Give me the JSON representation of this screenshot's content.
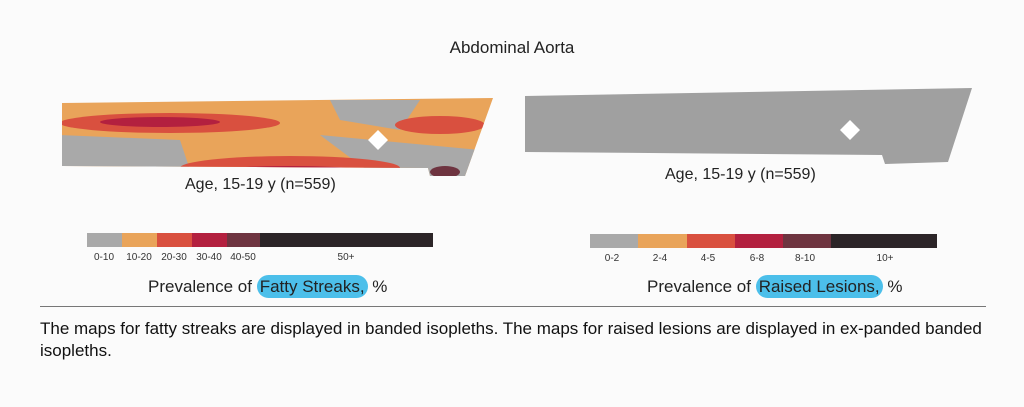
{
  "title": "Abdominal Aorta",
  "panels": [
    {
      "age_label": "Age, 15-19 y (n=559)",
      "legend": {
        "labels": [
          "0-10",
          "10-20",
          "20-30",
          "30-40",
          "40-50",
          "50+"
        ],
        "colors": [
          "#a9a9a9",
          "#e9a45a",
          "#d9503f",
          "#b3203f",
          "#6e3440",
          "#2c2528"
        ]
      },
      "caption_prefix": "Prevalence of ",
      "caption_highlight": "Fatty Streaks,",
      "caption_suffix": " %"
    },
    {
      "age_label": "Age, 15-19 y (n=559)",
      "legend": {
        "labels": [
          "0-2",
          "2-4",
          "4-5",
          "6-8",
          "8-10",
          "10+"
        ],
        "colors": [
          "#a9a9a9",
          "#e9a45a",
          "#d9503f",
          "#b3203f",
          "#6e3440",
          "#2c2528"
        ]
      },
      "caption_prefix": "Prevalence of ",
      "caption_highlight": "Raised Lesions,",
      "caption_suffix": " %"
    }
  ],
  "highlight_color": "#4cbfea",
  "caption": "The maps for fatty streaks are displayed in banded isopleths. The maps for raised lesions are displayed in ex-panded banded isopleths."
}
